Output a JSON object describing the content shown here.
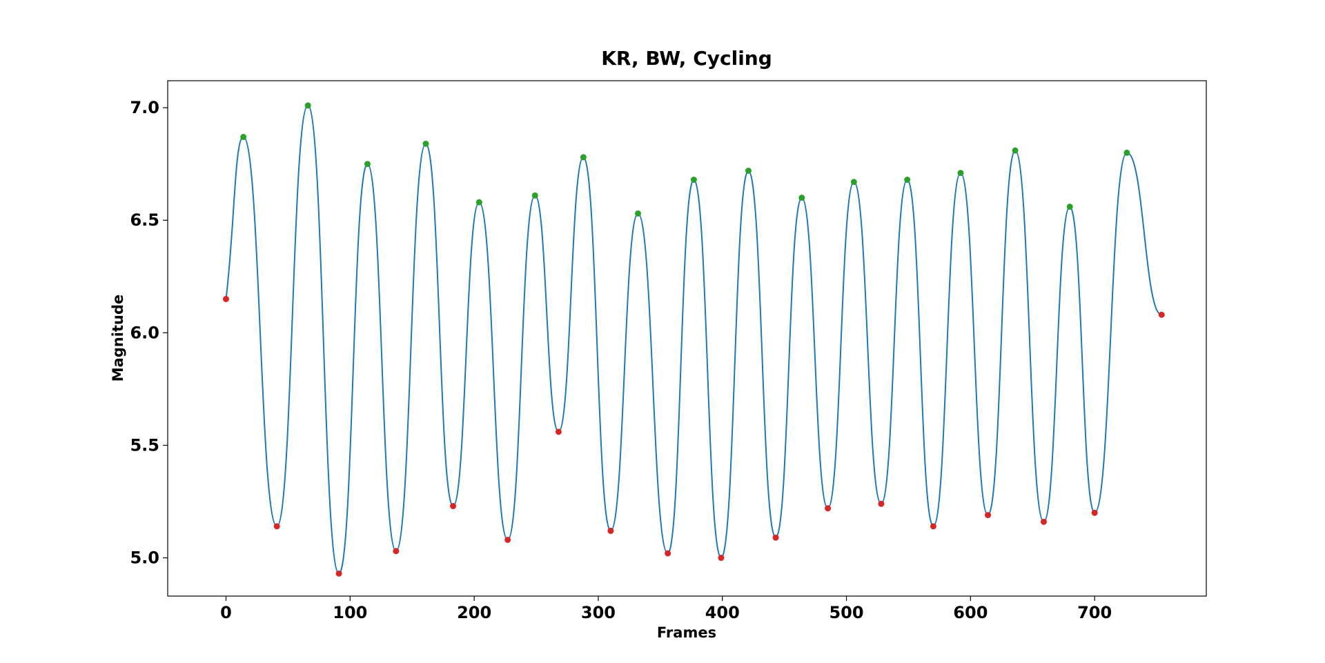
{
  "chart_data": {
    "type": "line",
    "title": "KR, BW, Cycling",
    "xlabel": "Frames",
    "ylabel": "Magnitude",
    "xlim": [
      -47,
      790
    ],
    "ylim": [
      4.83,
      7.12
    ],
    "xticks": [
      0,
      100,
      200,
      300,
      400,
      500,
      600,
      700
    ],
    "yticks": [
      5.0,
      5.5,
      6.0,
      6.5,
      7.0
    ],
    "xtick_labels": [
      "0",
      "100",
      "200",
      "300",
      "400",
      "500",
      "600",
      "700"
    ],
    "ytick_labels": [
      "5.0",
      "5.5",
      "6.0",
      "6.5",
      "7.0"
    ],
    "grid": false,
    "legend": "none",
    "colors": {
      "line": "#1f77b4",
      "peaks": "#2ca02c",
      "troughs": "#d62728"
    },
    "peaks": {
      "x": [
        14,
        66,
        114,
        161,
        204,
        249,
        288,
        332,
        377,
        421,
        464,
        506,
        549,
        592,
        636,
        680,
        726
      ],
      "y": [
        6.87,
        7.01,
        6.75,
        6.84,
        6.58,
        6.61,
        6.78,
        6.53,
        6.68,
        6.72,
        6.6,
        6.67,
        6.68,
        6.71,
        6.81,
        6.56,
        6.8
      ]
    },
    "troughs": {
      "x": [
        0,
        41,
        91,
        137,
        183,
        227,
        268,
        310,
        356,
        399,
        443,
        485,
        528,
        570,
        614,
        659,
        700,
        754
      ],
      "y": [
        6.15,
        5.14,
        4.93,
        5.03,
        5.23,
        5.08,
        5.56,
        5.12,
        5.02,
        5.0,
        5.09,
        5.22,
        5.24,
        5.14,
        5.19,
        5.16,
        5.2,
        6.08
      ]
    }
  }
}
